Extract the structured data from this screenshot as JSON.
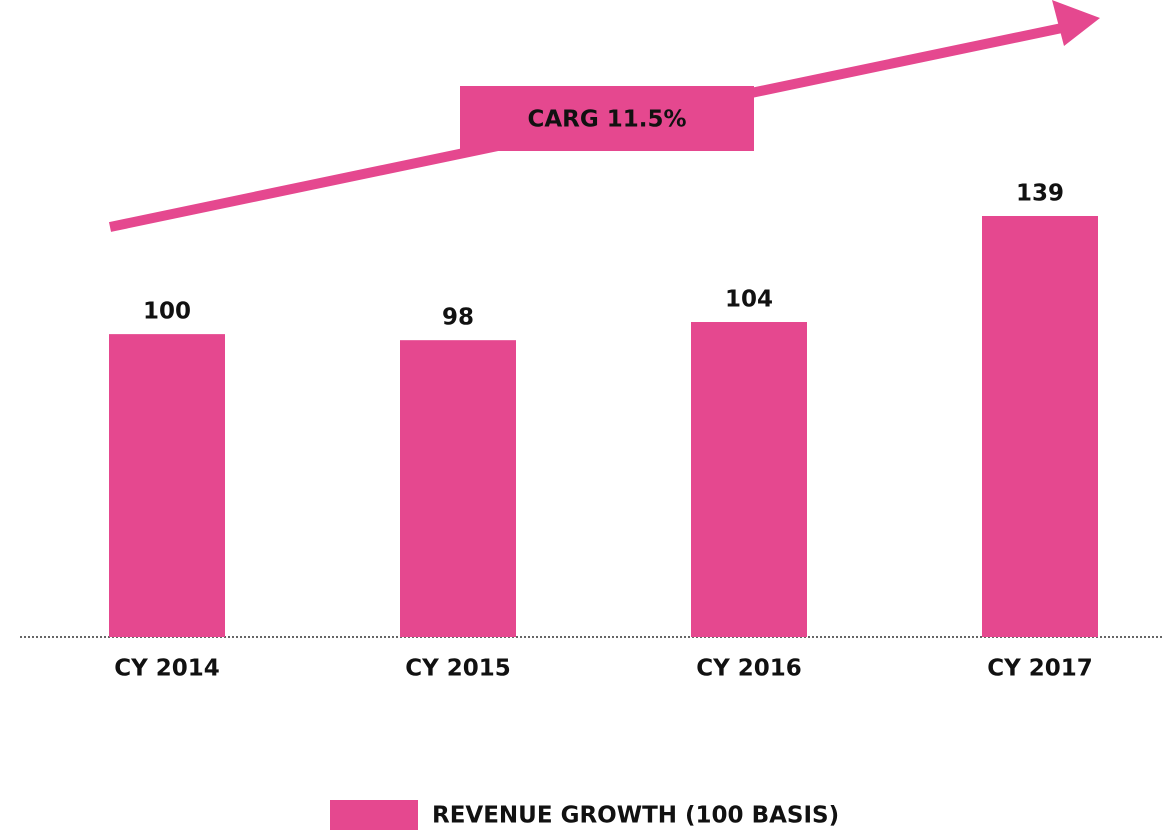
{
  "chart_data": {
    "type": "bar",
    "annotation": "CARG 11.5%",
    "categories": [
      "CY 2014",
      "CY 2015",
      "CY 2016",
      "CY 2017"
    ],
    "series": [
      {
        "name": "REVENUE GROWTH (100 BASIS)",
        "color": "#e5488f",
        "values": [
          100,
          98,
          104,
          139
        ]
      }
    ],
    "legend": "bottom"
  }
}
